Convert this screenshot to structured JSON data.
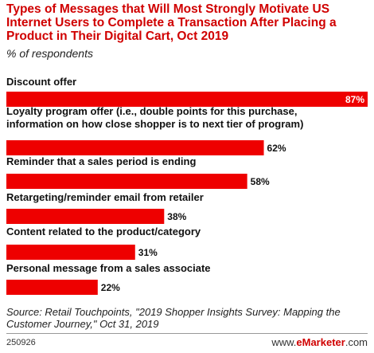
{
  "title": "Types of Messages that Will Most Strongly Motivate US Internet Users to Complete a Transaction After Placing a Product in Their Digital Cart, Oct 2019",
  "subtitle": "% of respondents",
  "colors": {
    "bar": "#ee0000",
    "title": "#d00000"
  },
  "chart_data": {
    "type": "bar",
    "orientation": "horizontal",
    "title": "Types of Messages that Will Most Strongly Motivate US Internet Users to Complete a Transaction After Placing a Product in Their Digital Cart, Oct 2019",
    "ylabel": "% of respondents",
    "categories": [
      [
        "Discount offer"
      ],
      [
        "Loyalty program offer (i.e., double points for this purchase,",
        "information on how close shopper is to next tier of program)"
      ],
      [
        "Reminder that a sales period is ending"
      ],
      [
        "Retargeting/reminder email from retailer"
      ],
      [
        "Content related to the product/category"
      ],
      [
        "Personal message from a sales associate"
      ]
    ],
    "values": [
      87,
      62,
      58,
      38,
      31,
      22
    ],
    "value_labels": [
      "87%",
      "62%",
      "58%",
      "38%",
      "31%",
      "22%"
    ],
    "xlim": [
      0,
      87
    ],
    "grid": false,
    "legend": "none"
  },
  "source": "Source: Retail Touchpoints, \"2019 Shopper Insights Survey: Mapping the Customer Journey,\" Oct 31, 2019",
  "footer": {
    "id": "250926",
    "brand_prefix": "www.",
    "brand_name": "eMarketer",
    "brand_suffix": ".com"
  }
}
